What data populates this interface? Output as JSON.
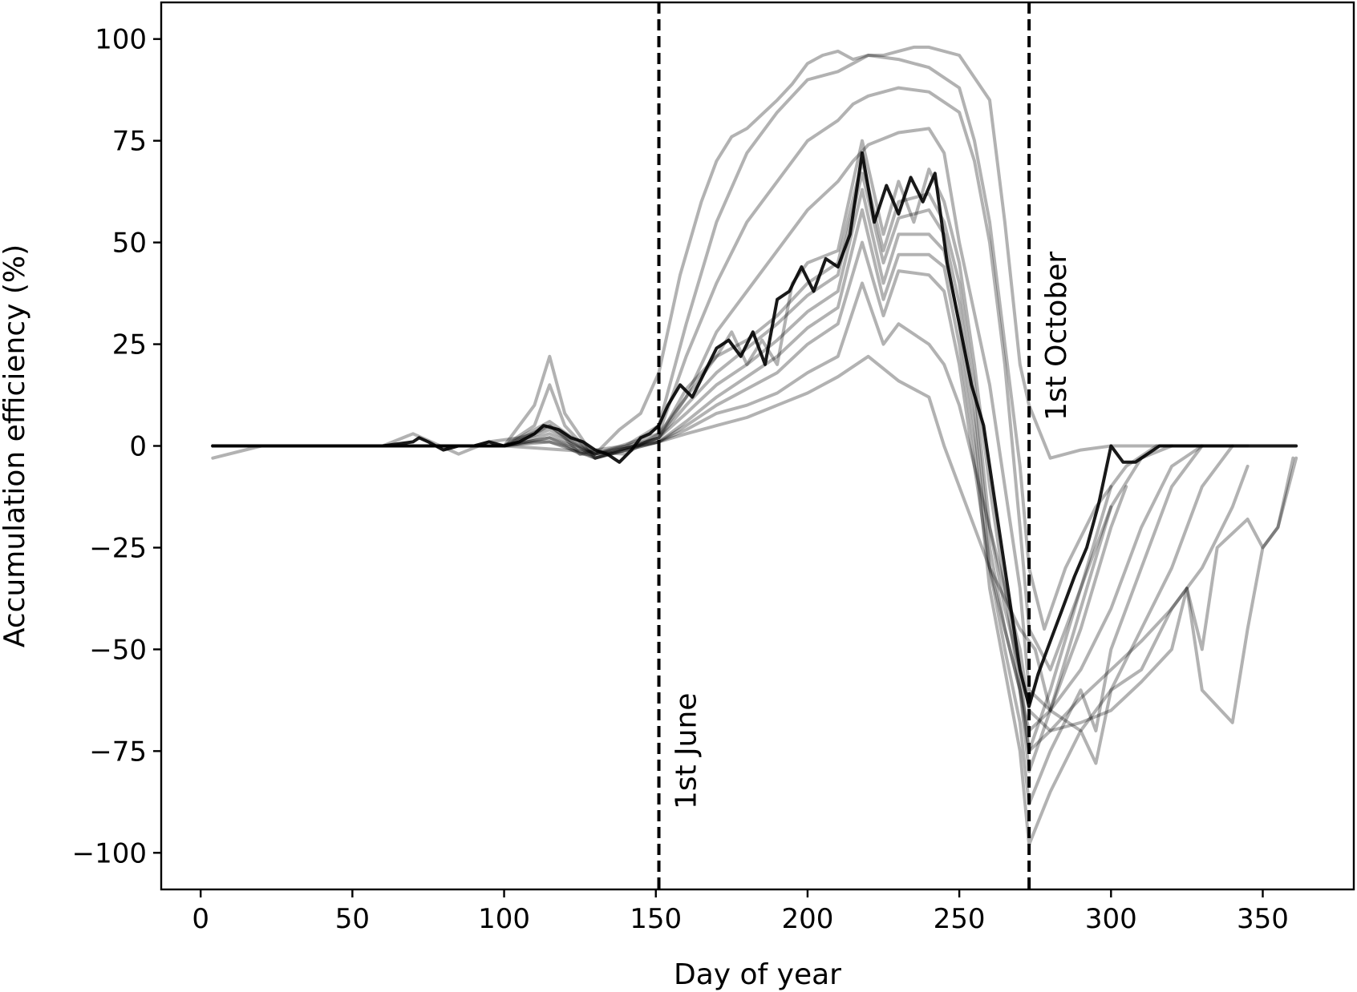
{
  "chart_data": {
    "type": "line",
    "title": "",
    "xlabel": "Day of year",
    "ylabel": "Accumulation efficiency (%)",
    "xlim": [
      -13,
      380
    ],
    "ylim": [
      -109,
      109
    ],
    "xticks": [
      0,
      50,
      100,
      150,
      200,
      250,
      300,
      350
    ],
    "yticks": [
      100,
      75,
      50,
      25,
      0,
      -25,
      -50,
      -75,
      -100
    ],
    "ytick_labels": [
      "100",
      "75",
      "50",
      "25",
      "0",
      "−25",
      "−50",
      "−75",
      "−100"
    ],
    "grid": false,
    "legend": "none",
    "colors": {
      "line": "#000000",
      "vline": "#000000"
    },
    "vlines": [
      {
        "x": 151,
        "label": "1st June",
        "label_y": -75
      },
      {
        "x": 273,
        "label": "1st October",
        "label_y": 27
      }
    ],
    "series": [
      {
        "opacity": 0.3,
        "x": [
          4,
          20,
          60,
          70,
          85,
          95,
          105,
          110,
          115,
          120,
          125,
          130,
          138,
          145,
          151,
          158,
          165,
          170,
          175,
          180,
          190,
          195,
          200,
          205,
          210,
          215,
          220,
          225,
          230,
          235,
          240,
          250,
          260,
          265,
          270,
          273,
          280,
          290,
          300,
          310,
          320,
          330,
          340
        ],
        "y": [
          -3,
          0,
          0,
          3,
          -2,
          1,
          2,
          3,
          5,
          2,
          -2,
          -2,
          4,
          8,
          18,
          42,
          60,
          70,
          76,
          78,
          85,
          89,
          94,
          96,
          97,
          95,
          96,
          96,
          97,
          98,
          98,
          96,
          85,
          55,
          20,
          10,
          -3,
          -1,
          0,
          0,
          0,
          0,
          0
        ]
      },
      {
        "opacity": 0.3,
        "x": [
          4,
          60,
          100,
          110,
          115,
          120,
          125,
          130,
          140,
          151,
          160,
          170,
          180,
          190,
          200,
          210,
          215,
          220,
          230,
          240,
          250,
          255,
          260,
          265,
          270,
          273,
          278,
          285,
          295,
          305,
          315,
          325,
          335,
          345
        ],
        "y": [
          0,
          0,
          0,
          1,
          1,
          0,
          -2,
          -1,
          0,
          5,
          30,
          55,
          72,
          82,
          90,
          92,
          94,
          96,
          95,
          93,
          88,
          75,
          55,
          25,
          -5,
          -30,
          -45,
          -30,
          -15,
          -5,
          0,
          0,
          0,
          0
        ]
      },
      {
        "opacity": 0.3,
        "x": [
          4,
          100,
          120,
          140,
          151,
          160,
          170,
          180,
          190,
          200,
          210,
          215,
          220,
          230,
          240,
          250,
          255,
          260,
          265,
          270,
          273,
          280,
          290,
          300,
          310,
          320
        ],
        "y": [
          0,
          0,
          -1,
          -2,
          3,
          22,
          40,
          55,
          65,
          75,
          80,
          84,
          86,
          88,
          87,
          82,
          70,
          50,
          20,
          -20,
          -45,
          -55,
          -35,
          -15,
          -3,
          0
        ]
      },
      {
        "opacity": 0.3,
        "x": [
          4,
          100,
          110,
          115,
          120,
          130,
          140,
          151,
          160,
          170,
          180,
          190,
          200,
          210,
          215,
          220,
          230,
          240,
          245,
          250,
          260,
          270,
          273,
          280,
          290,
          300,
          310,
          320,
          330
        ],
        "y": [
          0,
          0,
          10,
          22,
          8,
          -3,
          -1,
          2,
          12,
          28,
          38,
          48,
          58,
          65,
          70,
          74,
          77,
          78,
          72,
          50,
          15,
          -35,
          -60,
          -65,
          -55,
          -40,
          -20,
          -5,
          0
        ]
      },
      {
        "opacity": 0.3,
        "x": [
          4,
          100,
          110,
          115,
          120,
          130,
          151,
          160,
          170,
          175,
          180,
          185,
          190,
          195,
          200,
          210,
          218,
          225,
          230,
          235,
          240,
          245,
          250,
          255,
          260,
          265,
          270,
          273,
          280,
          290,
          300,
          305
        ],
        "y": [
          0,
          0,
          5,
          15,
          5,
          -3,
          2,
          14,
          22,
          28,
          20,
          26,
          20,
          40,
          45,
          48,
          75,
          52,
          65,
          55,
          68,
          60,
          45,
          20,
          -10,
          -35,
          -60,
          -70,
          -65,
          -45,
          -20,
          -10
        ]
      },
      {
        "opacity": 0.3,
        "x": [
          4,
          100,
          115,
          130,
          151,
          160,
          170,
          180,
          190,
          200,
          210,
          218,
          225,
          230,
          240,
          245,
          250,
          255,
          260,
          265,
          270,
          273,
          280,
          290,
          300
        ],
        "y": [
          0,
          0,
          6,
          -2,
          3,
          12,
          22,
          26,
          32,
          40,
          45,
          70,
          48,
          60,
          62,
          55,
          40,
          15,
          -20,
          -40,
          -55,
          -75,
          -60,
          -35,
          -10
        ]
      },
      {
        "opacity": 0.3,
        "x": [
          4,
          100,
          115,
          130,
          151,
          160,
          170,
          180,
          190,
          200,
          210,
          218,
          225,
          230,
          240,
          245,
          250,
          255,
          260,
          265,
          270,
          273,
          280,
          290,
          300
        ],
        "y": [
          0,
          0,
          5,
          -3,
          2,
          10,
          18,
          24,
          30,
          37,
          42,
          67,
          45,
          56,
          58,
          52,
          35,
          10,
          -25,
          -45,
          -60,
          -80,
          -65,
          -40,
          -15
        ]
      },
      {
        "opacity": 0.3,
        "x": [
          4,
          100,
          115,
          130,
          151,
          160,
          170,
          180,
          190,
          200,
          210,
          218,
          225,
          230,
          240,
          245,
          250,
          255,
          260,
          265,
          270,
          273,
          280,
          290,
          295,
          300,
          310,
          320,
          330
        ],
        "y": [
          0,
          0,
          4,
          -2,
          2,
          8,
          15,
          20,
          26,
          33,
          38,
          63,
          40,
          52,
          52,
          48,
          30,
          5,
          -30,
          -50,
          -68,
          -88,
          -75,
          -60,
          -70,
          -50,
          -30,
          -10,
          0
        ]
      },
      {
        "opacity": 0.3,
        "x": [
          4,
          100,
          115,
          130,
          151,
          160,
          170,
          180,
          190,
          200,
          210,
          218,
          225,
          230,
          240,
          245,
          250,
          255,
          260,
          265,
          270,
          273,
          280,
          290,
          295,
          300,
          310,
          320,
          330,
          340
        ],
        "y": [
          0,
          0,
          3,
          -2,
          1,
          6,
          12,
          17,
          22,
          29,
          34,
          58,
          36,
          47,
          47,
          44,
          25,
          0,
          -35,
          -55,
          -75,
          -98,
          -85,
          -70,
          -78,
          -60,
          -45,
          -30,
          -10,
          0
        ]
      },
      {
        "opacity": 0.3,
        "x": [
          4,
          100,
          115,
          130,
          151,
          160,
          170,
          180,
          190,
          200,
          210,
          218,
          225,
          230,
          240,
          245,
          250,
          255,
          260,
          265,
          270,
          273,
          280,
          290,
          300,
          310,
          320,
          330,
          340,
          345
        ],
        "y": [
          0,
          0,
          2,
          -2,
          1,
          5,
          10,
          14,
          18,
          25,
          30,
          50,
          32,
          43,
          42,
          38,
          20,
          -5,
          -30,
          -45,
          -60,
          -75,
          -70,
          -62,
          -55,
          -48,
          -40,
          -30,
          -15,
          -5
        ]
      },
      {
        "opacity": 0.3,
        "x": [
          4,
          100,
          115,
          130,
          151,
          160,
          170,
          180,
          190,
          200,
          210,
          218,
          225,
          230,
          240,
          245,
          250,
          260,
          270,
          273,
          280,
          290,
          300,
          310,
          320,
          325,
          330,
          340,
          345,
          350,
          355,
          360
        ],
        "y": [
          0,
          0,
          2,
          -3,
          1,
          4,
          8,
          10,
          13,
          18,
          22,
          40,
          25,
          30,
          25,
          20,
          10,
          -20,
          -50,
          -65,
          -70,
          -68,
          -65,
          -58,
          -50,
          -35,
          -60,
          -68,
          -45,
          -25,
          -20,
          -3
        ]
      },
      {
        "opacity": 0.3,
        "x": [
          4,
          100,
          115,
          130,
          151,
          160,
          170,
          180,
          190,
          200,
          210,
          220,
          230,
          240,
          245,
          250,
          260,
          270,
          275,
          280,
          290,
          300,
          310,
          320,
          325,
          330,
          335,
          345,
          350,
          355,
          361
        ],
        "y": [
          0,
          0,
          1,
          -3,
          1,
          3,
          5,
          7,
          10,
          13,
          17,
          22,
          16,
          12,
          0,
          -10,
          -30,
          -45,
          -50,
          -65,
          -70,
          -60,
          -55,
          -40,
          -35,
          -50,
          -25,
          -18,
          -25,
          -20,
          -3
        ]
      },
      {
        "opacity": 0.9,
        "x": [
          4,
          20,
          40,
          60,
          70,
          72,
          75,
          80,
          85,
          90,
          95,
          100,
          105,
          110,
          113,
          118,
          122,
          126,
          130,
          134,
          138,
          142,
          145,
          148,
          151,
          154,
          158,
          162,
          166,
          170,
          174,
          178,
          182,
          186,
          190,
          194,
          198,
          202,
          206,
          210,
          214,
          218,
          222,
          226,
          230,
          234,
          238,
          242,
          246,
          250,
          254,
          258,
          262,
          266,
          270,
          273,
          276,
          280,
          284,
          288,
          292,
          296,
          300,
          304,
          308,
          312,
          316,
          320,
          340,
          361
        ],
        "y": [
          0,
          0,
          0,
          0,
          1,
          2,
          1,
          -1,
          0,
          0,
          1,
          0,
          1,
          3,
          5,
          4,
          2,
          1,
          -1,
          -2,
          -4,
          -1,
          2,
          3,
          5,
          10,
          15,
          12,
          18,
          24,
          26,
          22,
          28,
          20,
          36,
          38,
          44,
          38,
          46,
          44,
          52,
          72,
          55,
          64,
          57,
          66,
          60,
          67,
          45,
          30,
          15,
          5,
          -15,
          -35,
          -55,
          -64,
          -56,
          -48,
          -40,
          -32,
          -25,
          -14,
          0,
          -4,
          -4,
          -2,
          0,
          0,
          0,
          0
        ]
      }
    ]
  }
}
